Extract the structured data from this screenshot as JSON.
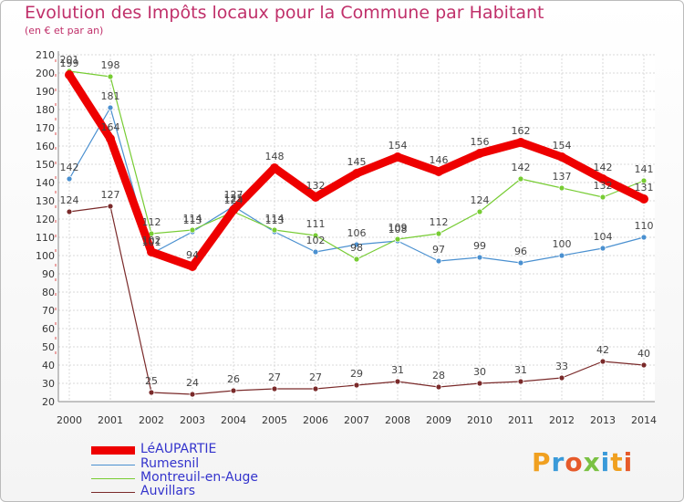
{
  "title": "Evolution des Impôts locaux pour la Commune par Habitant",
  "subtitle": "(en € et par an)",
  "logo": {
    "text": "Proxiti",
    "colors": [
      "#f0a020",
      "#3a9ad9",
      "#e65a2a",
      "#7ac143",
      "#3a9ad9",
      "#f0a020",
      "#e65a2a"
    ]
  },
  "chart_data": {
    "type": "line",
    "title": "Evolution des Impôts locaux pour la Commune par Habitant",
    "subtitle": "(en € et par an)",
    "x": [
      2000,
      2001,
      2002,
      2003,
      2004,
      2005,
      2006,
      2007,
      2008,
      2009,
      2010,
      2011,
      2012,
      2013,
      2014
    ],
    "ylim": [
      20,
      210
    ],
    "yticks": [
      20,
      30,
      40,
      50,
      60,
      70,
      80,
      90,
      100,
      110,
      120,
      130,
      140,
      150,
      160,
      170,
      180,
      190,
      200,
      210
    ],
    "grid": true,
    "legend_position": "bottom-left",
    "series": [
      {
        "name": "LéAUPARTIE",
        "color": "#ee0000",
        "values": [
          199,
          164,
          102,
          94,
          125,
          148,
          132,
          145,
          154,
          146,
          156,
          162,
          154,
          142,
          131
        ]
      },
      {
        "name": "Rumesnil",
        "color": "#4a90d0",
        "values": [
          142,
          181,
          101,
          113,
          127,
          113,
          102,
          106,
          108,
          97,
          99,
          96,
          100,
          104,
          110
        ]
      },
      {
        "name": "Montreuil-en-Auge",
        "color": "#77cc33",
        "values": [
          201,
          198,
          112,
          114,
          124,
          114,
          111,
          98,
          109,
          112,
          124,
          142,
          137,
          132,
          141
        ]
      },
      {
        "name": "Auvillars",
        "color": "#7a2a2a",
        "values": [
          124,
          127,
          25,
          24,
          26,
          27,
          27,
          29,
          31,
          28,
          30,
          31,
          33,
          42,
          40
        ]
      }
    ],
    "point_labels": [
      [
        "199",
        "164",
        "102",
        "94",
        "125",
        "148",
        "132",
        "145",
        "154",
        "146",
        "156",
        "162",
        "154",
        "142",
        "131"
      ],
      [
        "142",
        "181",
        "101",
        "113",
        "127",
        "113",
        "102",
        "106",
        "108",
        "97",
        "99",
        "96",
        "100",
        "104",
        "110"
      ],
      [
        "201",
        "198",
        "112",
        "114",
        "124",
        "114",
        "111",
        "98",
        "109",
        "112",
        "124",
        "142",
        "137",
        "132",
        "141"
      ],
      [
        "124",
        "127",
        "25",
        "24",
        "26",
        "27",
        "27",
        "29",
        "31",
        "28",
        "30",
        "31",
        "33",
        "42",
        "40"
      ]
    ]
  }
}
